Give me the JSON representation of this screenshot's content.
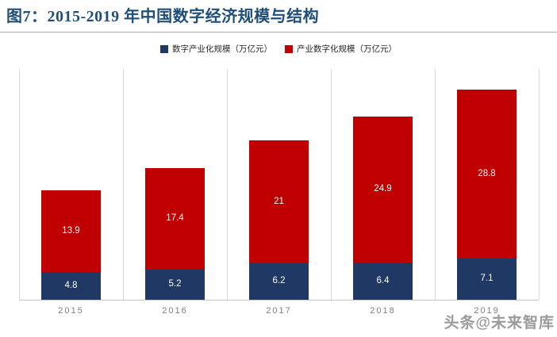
{
  "header": {
    "title": "图7：2015-2019 年中国数字经济规模与结构"
  },
  "legend": [
    {
      "label": "数字产业化规模（万亿元）",
      "color": "#1F3864"
    },
    {
      "label": "产业数字化规模（万亿元）",
      "color": "#C00000"
    }
  ],
  "watermark": "头条@未来智库",
  "chart_data": {
    "type": "bar",
    "stacked": true,
    "title": "图7：2015-2019 年中国数字经济规模与结构",
    "categories": [
      "2015",
      "2016",
      "2017",
      "2018",
      "2019"
    ],
    "series": [
      {
        "name": "数字产业化规模（万亿元）",
        "color": "#1F3864",
        "values": [
          4.8,
          5.2,
          6.2,
          6.4,
          7.1
        ],
        "labels": [
          "4.8",
          "5.2",
          "6.2",
          "6.4",
          "7.1"
        ]
      },
      {
        "name": "产业数字化规模（万亿元）",
        "color": "#C00000",
        "values": [
          13.9,
          17.4,
          21,
          24.9,
          28.8
        ],
        "labels": [
          "13.9",
          "17.4",
          "21",
          "24.9",
          "28.8"
        ]
      }
    ],
    "totals": [
      18.7,
      22.6,
      27.2,
      31.3,
      35.9
    ],
    "xlabel": "",
    "ylabel": "",
    "ylim": [
      0,
      39.4
    ],
    "grid": "vertical-category-separators",
    "gridline_color": "#D9D9D9",
    "axis_line_color": "#C6C6C6",
    "data_label_color": "#FFFFFF",
    "axis_text_color": "#7F7F7F",
    "legend_position": "top-center"
  }
}
